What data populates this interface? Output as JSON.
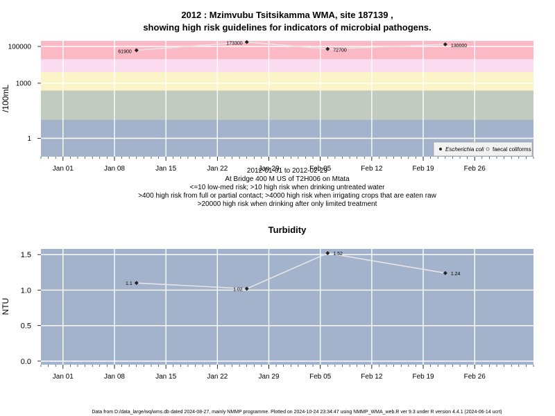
{
  "chart_data": [
    {
      "type": "scatter",
      "title_line1": "2012 : Mzimvubu Tsitsikamma WMA, site 187139 ,",
      "title_line2": "showing high risk guidelines for indicators of microbial pathogens.",
      "ylabel": "/100mL",
      "y_scale": "log",
      "ylim": [
        0.1,
        200000
      ],
      "yticks": [
        1,
        1000,
        100000
      ],
      "ytick_labels": [
        "1",
        "1000",
        "100000"
      ],
      "x_dates": [
        "2012-01-11",
        "2012-01-26",
        "2012-02-06",
        "2012-02-22"
      ],
      "series": [
        {
          "name": "Escherichia coli",
          "values": [
            61900,
            173300,
            72700,
            130000
          ],
          "labels": [
            "61900",
            "173300",
            "72700",
            "130000"
          ]
        },
        {
          "name": "faecal coliforms",
          "values": []
        }
      ],
      "risk_bands": [
        {
          "from": 0.1,
          "to": 10,
          "color": "#a3b3cb"
        },
        {
          "from": 10,
          "to": 400,
          "color": "#c2cbbf"
        },
        {
          "from": 400,
          "to": 4000,
          "color": "#fbf4c7"
        },
        {
          "from": 4000,
          "to": 20000,
          "color": "#fcdcf0"
        },
        {
          "from": 20000,
          "to": 200000,
          "color": "#fbb9c6"
        }
      ],
      "notes": [
        "2012-01-01 to 2012-02-29",
        "At Bridge 400 M US of T2H006 on Mtata",
        "<=10 low-med risk; >10 high risk when drinking untreated water",
        ">400 high risk from full or partial contact; >4000 high risk when irrigating crops that are eaten raw",
        ">20000 high risk when drinking after only limited treatment"
      ],
      "legend_position": "bottom-right",
      "grid": true
    },
    {
      "type": "line",
      "title": "Turbidity",
      "ylabel": "NTU",
      "ylim": [
        -0.05,
        1.58
      ],
      "yticks": [
        0.0,
        0.5,
        1.0,
        1.5
      ],
      "ytick_labels": [
        "0.0",
        "0.5",
        "1.0",
        "1.5"
      ],
      "x_dates": [
        "2012-01-11",
        "2012-01-26",
        "2012-02-06",
        "2012-02-22"
      ],
      "values": [
        1.1,
        1.02,
        1.52,
        1.24
      ],
      "labels": [
        "1.1",
        "1.02",
        "1.52",
        "1.24"
      ],
      "grid": true
    }
  ],
  "x_axis": {
    "range": [
      "2011-12-29",
      "2012-03-05"
    ],
    "ticks": [
      "2012-01-01",
      "2012-01-08",
      "2012-01-15",
      "2012-01-22",
      "2012-01-29",
      "2012-02-05",
      "2012-02-12",
      "2012-02-19",
      "2012-02-26"
    ],
    "tick_labels": [
      "Jan 01",
      "Jan 08",
      "Jan 15",
      "Jan 22",
      "Jan 29",
      "Feb 05",
      "Feb 12",
      "Feb 19",
      "Feb 26"
    ]
  },
  "colors": {
    "panel_bg": "#a3b3cb",
    "grid": "#ffffff",
    "series_line": "#e6e6e6",
    "marker": "#222222"
  },
  "footer": "Data from D:/data_large/wq/wms.db dated 2024-08-27, mainly NMMP programme. Plotted on 2024-10-24 23:34:47 using NMMP_WMA_web.R ver 9.3 under R version 4.4.1 (2024-06-14 ucrt)"
}
